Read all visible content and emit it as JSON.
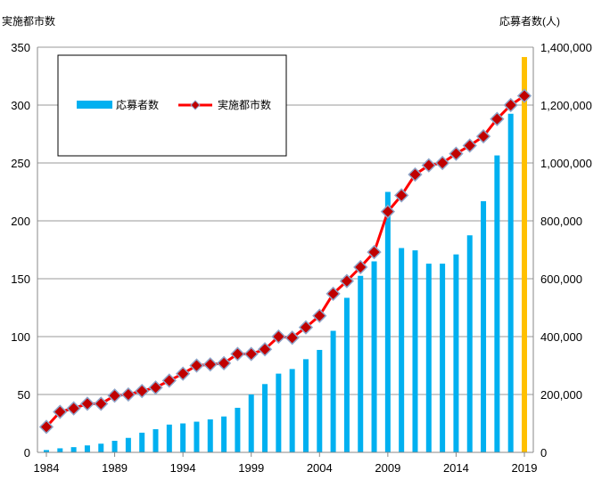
{
  "chart_data": {
    "type": "bar+line",
    "left_axis_title": "実施都市数",
    "right_axis_title": "応募者数(人)",
    "x_ticks": [
      "1984",
      "1989",
      "1994",
      "1999",
      "2004",
      "2009",
      "2014",
      "2019"
    ],
    "left_ticks": [
      "0",
      "50",
      "100",
      "150",
      "200",
      "250",
      "300",
      "350"
    ],
    "right_ticks": [
      "0",
      "200,000",
      "400,000",
      "600,000",
      "800,000",
      "1,000,000",
      "1,200,000",
      "1,400,000"
    ],
    "ylim_left": [
      0,
      350
    ],
    "ylim_right": [
      0,
      1400000
    ],
    "xlim": [
      1984,
      2019
    ],
    "grid": true,
    "legend_position": "top-left",
    "colors": {
      "bar": "#00b0f0",
      "bar_highlight": "#ffc000",
      "line": "#ff0000",
      "marker": "#c00000",
      "grid": "#999999"
    },
    "series": [
      {
        "name": "応募者数",
        "kind": "bar",
        "axis": "right",
        "x": [
          1984,
          1985,
          1986,
          1987,
          1988,
          1989,
          1990,
          1991,
          1992,
          1993,
          1994,
          1995,
          1996,
          1997,
          1998,
          1999,
          2000,
          2001,
          2002,
          2003,
          2004,
          2005,
          2006,
          2007,
          2008,
          2009,
          2010,
          2011,
          2012,
          2013,
          2014,
          2015,
          2016,
          2017,
          2018,
          2019
        ],
        "values": [
          8000,
          14000,
          18000,
          24000,
          30000,
          40000,
          50000,
          68000,
          80000,
          96000,
          100000,
          106000,
          114000,
          124000,
          154000,
          200000,
          236000,
          272000,
          288000,
          322000,
          354000,
          420000,
          534000,
          610000,
          660000,
          900000,
          706000,
          698000,
          652000,
          652000,
          684000,
          750000,
          868000,
          1026000,
          1170000,
          1366000
        ]
      },
      {
        "name": "実施都市数",
        "kind": "line",
        "axis": "left",
        "x": [
          1984,
          1985,
          1986,
          1987,
          1988,
          1989,
          1990,
          1991,
          1992,
          1993,
          1994,
          1995,
          1996,
          1997,
          1998,
          1999,
          2000,
          2001,
          2002,
          2003,
          2004,
          2005,
          2006,
          2007,
          2008,
          2009,
          2010,
          2011,
          2012,
          2013,
          2014,
          2015,
          2016,
          2017,
          2018,
          2019
        ],
        "values": [
          22,
          35,
          38,
          42,
          42,
          49,
          50,
          53,
          56,
          62,
          68,
          75,
          76,
          77,
          85,
          85,
          89,
          100,
          99,
          108,
          118,
          137,
          148,
          160,
          173,
          208,
          222,
          240,
          248,
          250,
          258,
          265,
          273,
          288,
          300,
          308
        ]
      }
    ]
  }
}
